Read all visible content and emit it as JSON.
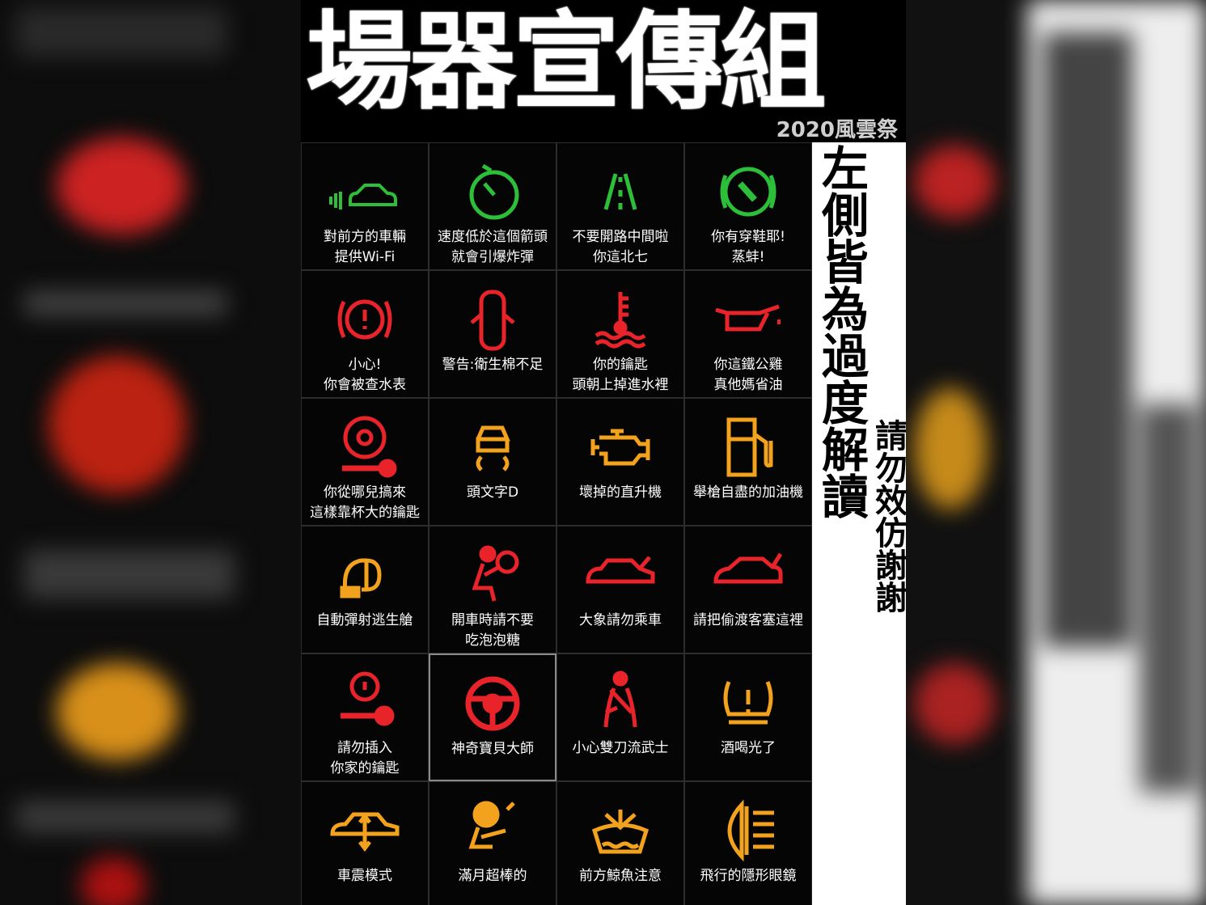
{
  "title": "場器宣傳組",
  "subtitle": "2020風雲祭",
  "side_text": "左側皆為過度解讀",
  "side_note": "請勿效仿謝謝",
  "colors": {
    "green": "#2dbf3a",
    "red": "#e8242a",
    "orange": "#f2a21d"
  },
  "cells": [
    {
      "label": "對前方的車輛\n提供Wi-Fi",
      "icon": "car-wifi-icon",
      "color": "green"
    },
    {
      "label": "速度低於這個箭頭\n就會引爆炸彈",
      "icon": "stopwatch-icon",
      "color": "green"
    },
    {
      "label": "不要開路中間啦\n你這北七",
      "icon": "lane-icon",
      "color": "green"
    },
    {
      "label": "你有穿鞋耶!\n蒸蚌!",
      "icon": "brake-pedal-icon",
      "color": "green"
    },
    {
      "label": "小心!\n你會被查水表",
      "icon": "brake-warning-icon",
      "color": "red"
    },
    {
      "label": "警告:衛生棉不足",
      "icon": "door-open-icon",
      "color": "red"
    },
    {
      "label": "你的鑰匙\n頭朝上掉進水裡",
      "icon": "coolant-icon",
      "color": "red"
    },
    {
      "label": "你這鐵公雞\n真他媽省油",
      "icon": "oil-can-icon",
      "color": "red"
    },
    {
      "label": "你從哪兒搞來\n這樣靠杯大的鑰匙",
      "icon": "steering-key-icon",
      "color": "red"
    },
    {
      "label": "頭文字D",
      "icon": "skid-icon",
      "color": "orange"
    },
    {
      "label": "壞掉的直升機",
      "icon": "engine-icon",
      "color": "orange"
    },
    {
      "label": "舉槍自盡的加油機",
      "icon": "fuel-pump-icon",
      "color": "orange"
    },
    {
      "label": "自動彈射逃生艙",
      "icon": "headlight-level-icon",
      "color": "orange"
    },
    {
      "label": "開車時請不要\n吃泡泡糖",
      "icon": "airbag-icon",
      "color": "red"
    },
    {
      "label": "大象請勿乘車",
      "icon": "hood-open-icon",
      "color": "red"
    },
    {
      "label": "請把偷渡客塞這裡",
      "icon": "trunk-open-icon",
      "color": "red"
    },
    {
      "label": "請勿插入\n你家的鑰匙",
      "icon": "key-lock-icon",
      "color": "red"
    },
    {
      "label": "神奇寶貝大師",
      "icon": "steering-wheel-icon",
      "color": "red"
    },
    {
      "label": "小心雙刀流武士",
      "icon": "seatbelt-icon",
      "color": "red"
    },
    {
      "label": "酒喝光了",
      "icon": "tire-pressure-icon",
      "color": "orange"
    },
    {
      "label": "車震模式",
      "icon": "suspension-icon",
      "color": "orange"
    },
    {
      "label": "滿月超棒的",
      "icon": "passenger-airbag-icon",
      "color": "orange"
    },
    {
      "label": "前方鯨魚注意",
      "icon": "washer-fluid-icon",
      "color": "orange"
    },
    {
      "label": "飛行的隱形眼鏡",
      "icon": "fog-light-icon",
      "color": "orange"
    }
  ]
}
